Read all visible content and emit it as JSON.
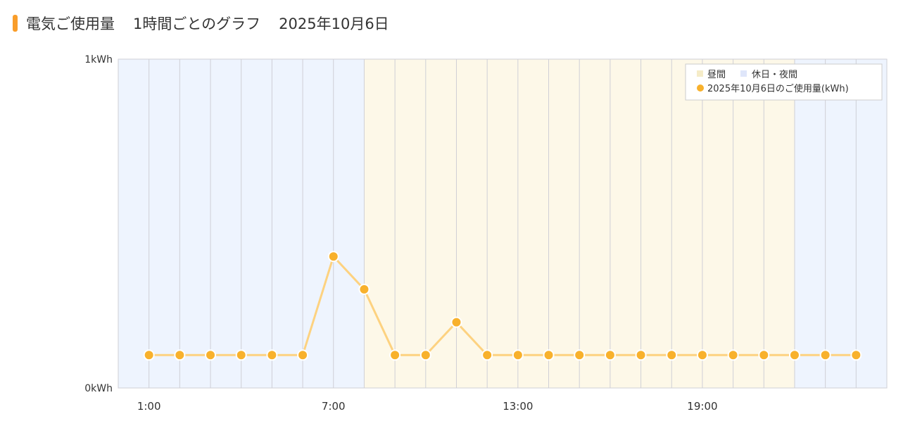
{
  "header": {
    "title": "電気ご使用量",
    "subtitle": "1時間ごとのグラフ",
    "date": "2025年10月6日"
  },
  "chart_data": {
    "type": "line",
    "x": [
      1,
      2,
      3,
      4,
      5,
      6,
      7,
      8,
      9,
      10,
      11,
      12,
      13,
      14,
      15,
      16,
      17,
      18,
      19,
      20,
      21,
      22,
      23,
      24
    ],
    "series": [
      {
        "name": "2025年10月6日のご使用量(kWh)",
        "values": [
          0.1,
          0.1,
          0.1,
          0.1,
          0.1,
          0.1,
          0.4,
          0.3,
          0.1,
          0.1,
          0.2,
          0.1,
          0.1,
          0.1,
          0.1,
          0.1,
          0.1,
          0.1,
          0.1,
          0.1,
          0.1,
          0.1,
          0.1,
          0.1
        ]
      }
    ],
    "xlim": [
      0,
      25
    ],
    "ylim": [
      0,
      1
    ],
    "xticks": [
      {
        "v": 1,
        "label": "1:00"
      },
      {
        "v": 7,
        "label": "7:00"
      },
      {
        "v": 13,
        "label": "13:00"
      },
      {
        "v": 19,
        "label": "19:00"
      }
    ],
    "yticks": [
      {
        "v": 0,
        "label": "0kWh"
      },
      {
        "v": 1,
        "label": "1kWh"
      }
    ],
    "bands": [
      {
        "name": "昼間",
        "from": 8,
        "to": 22,
        "color": "#fdf8e8"
      },
      {
        "name": "休日・夜間",
        "ranges": [
          [
            0,
            8
          ],
          [
            22,
            25
          ]
        ],
        "color": "#eef4fe"
      }
    ],
    "legend": {
      "position": "top-right",
      "items": [
        "昼間",
        "休日・夜間",
        "2025年10月6日のご使用量(kWh)"
      ]
    },
    "colors": {
      "line": "#fdd280",
      "point": "#f8b12c",
      "grid": "#cfcfd6",
      "day_legend": "#f5ecc8",
      "night_legend": "#dfe6fa"
    },
    "grid": true
  }
}
